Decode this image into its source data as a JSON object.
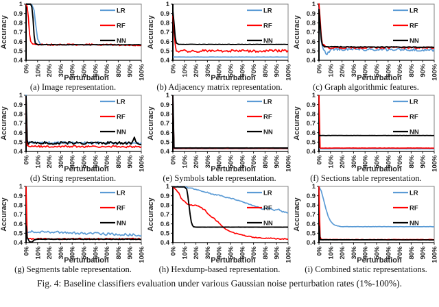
{
  "figure_caption": "Fig. 4: Baseline classifiers evaluation under various Gaussian noise perturbation rates (1%-100%).",
  "series_colors": {
    "LR": "#5B9BD5",
    "RF": "#FF0000",
    "NN": "#000000"
  },
  "legend_labels": [
    "LR",
    "RF",
    "NN"
  ],
  "axes": {
    "axis_color": "#1a1a1a",
    "box_color": "#808080",
    "yticks": [
      {
        "v": 0.4,
        "label": "0.4"
      },
      {
        "v": 0.5,
        "label": "0.5"
      },
      {
        "v": 0.6,
        "label": "0.6"
      },
      {
        "v": 0.7,
        "label": "0.7"
      },
      {
        "v": 0.8,
        "label": "0.8"
      },
      {
        "v": 0.9,
        "label": "0.9"
      },
      {
        "v": 1,
        "label": "1"
      }
    ],
    "xticks": [
      {
        "v": 0,
        "label": "0%"
      },
      {
        "v": 10,
        "label": "10%"
      },
      {
        "v": 20,
        "label": "20%"
      },
      {
        "v": 30,
        "label": "30%"
      },
      {
        "v": 40,
        "label": "40%"
      },
      {
        "v": 50,
        "label": "50%"
      },
      {
        "v": 60,
        "label": "60%"
      },
      {
        "v": 70,
        "label": "70%"
      },
      {
        "v": 80,
        "label": "80%"
      },
      {
        "v": 90,
        "label": "90%"
      },
      {
        "v": 100,
        "label": "100%"
      }
    ]
  },
  "chart_data": [
    {
      "type": "line",
      "caption": "(a) Image representation.",
      "xlabel": "Perturbation",
      "ylabel": "Accuracy",
      "xlim": [
        0,
        100
      ],
      "ylim": [
        0.4,
        1
      ],
      "legend_position": "top-right",
      "grid": false,
      "series": [
        {
          "name": "LR",
          "noise": 0.003,
          "points": [
            [
              0,
              1
            ],
            [
              4,
              1
            ],
            [
              5,
              0.99
            ],
            [
              7,
              0.93
            ],
            [
              8,
              0.82
            ],
            [
              10,
              0.63
            ],
            [
              12,
              0.58
            ],
            [
              14,
              0.567
            ],
            [
              100,
              0.565
            ]
          ]
        },
        {
          "name": "RF",
          "noise": 0.007,
          "points": [
            [
              0,
              1
            ],
            [
              1,
              0.97
            ],
            [
              2,
              0.85
            ],
            [
              3,
              0.68
            ],
            [
              4,
              0.6
            ],
            [
              6,
              0.575
            ],
            [
              8,
              0.568
            ],
            [
              55,
              0.568
            ],
            [
              100,
              0.562
            ]
          ]
        },
        {
          "name": "NN",
          "noise": 0.0015,
          "points": [
            [
              0,
              1
            ],
            [
              4,
              1
            ],
            [
              5,
              0.97
            ],
            [
              6,
              0.85
            ],
            [
              7,
              0.66
            ],
            [
              8,
              0.585
            ],
            [
              10,
              0.567
            ],
            [
              100,
              0.566
            ]
          ]
        }
      ]
    },
    {
      "type": "line",
      "caption": "(b) Adjacency matrix representation.",
      "xlabel": "Perturbation",
      "ylabel": "Accuracy",
      "xlim": [
        0,
        100
      ],
      "ylim": [
        0.4,
        1
      ],
      "legend_position": "top-right",
      "grid": false,
      "series": [
        {
          "name": "LR",
          "noise": 0.001,
          "points": [
            [
              0,
              0.435
            ],
            [
              100,
              0.435
            ]
          ]
        },
        {
          "name": "RF",
          "noise": 0.014,
          "points": [
            [
              0,
              0.87
            ],
            [
              1,
              0.72
            ],
            [
              2,
              0.58
            ],
            [
              3,
              0.51
            ],
            [
              5,
              0.5
            ],
            [
              100,
              0.5
            ]
          ]
        },
        {
          "name": "NN",
          "noise": 0.0015,
          "points": [
            [
              0,
              0.93
            ],
            [
              1,
              0.8
            ],
            [
              2,
              0.65
            ],
            [
              3,
              0.585
            ],
            [
              5,
              0.57
            ],
            [
              100,
              0.57
            ]
          ]
        }
      ]
    },
    {
      "type": "line",
      "caption": "(c) Graph algorithmic features.",
      "xlabel": "Perturbation",
      "ylabel": "Accuracy",
      "xlim": [
        0,
        100
      ],
      "ylim": [
        0.4,
        1
      ],
      "legend_position": "top-right",
      "grid": false,
      "series": [
        {
          "name": "LR",
          "noise": 0.014,
          "points": [
            [
              0,
              0.97
            ],
            [
              1,
              0.8
            ],
            [
              2,
              0.62
            ],
            [
              3,
              0.54
            ],
            [
              5,
              0.5
            ],
            [
              7,
              0.46
            ],
            [
              9,
              0.5
            ],
            [
              12,
              0.52
            ],
            [
              100,
              0.51
            ]
          ]
        },
        {
          "name": "RF",
          "noise": 0.011,
          "points": [
            [
              0,
              1
            ],
            [
              1,
              0.85
            ],
            [
              2,
              0.66
            ],
            [
              3,
              0.58
            ],
            [
              5,
              0.55
            ],
            [
              8,
              0.535
            ],
            [
              100,
              0.535
            ]
          ]
        },
        {
          "name": "NN",
          "noise": 0.004,
          "points": [
            [
              0,
              0.95
            ],
            [
              1,
              0.78
            ],
            [
              2,
              0.62
            ],
            [
              3,
              0.565
            ],
            [
              5,
              0.545
            ],
            [
              100,
              0.54
            ]
          ]
        }
      ]
    },
    {
      "type": "line",
      "caption": "(d) String representation.",
      "xlabel": "Perturbation",
      "ylabel": "Accuracy",
      "xlim": [
        0,
        100
      ],
      "ylim": [
        0.4,
        1
      ],
      "legend_position": "top-right",
      "grid": false,
      "series": [
        {
          "name": "LR",
          "noise": 0.011,
          "points": [
            [
              0,
              1
            ],
            [
              1,
              0.52
            ],
            [
              2,
              0.495
            ],
            [
              100,
              0.49
            ]
          ]
        },
        {
          "name": "RF",
          "noise": 0.01,
          "points": [
            [
              0,
              1
            ],
            [
              1,
              0.47
            ],
            [
              2,
              0.455
            ],
            [
              100,
              0.45
            ]
          ]
        },
        {
          "name": "NN",
          "noise": 0.014,
          "points": [
            [
              0,
              1
            ],
            [
              1,
              0.5
            ],
            [
              2,
              0.49
            ],
            [
              92,
              0.49
            ],
            [
              94,
              0.545
            ],
            [
              96,
              0.49
            ],
            [
              100,
              0.48
            ]
          ]
        }
      ]
    },
    {
      "type": "line",
      "caption": "(e) Symbols table representation.",
      "xlabel": "Perturbation",
      "ylabel": "Accuracy",
      "xlim": [
        0,
        100
      ],
      "ylim": [
        0.4,
        1
      ],
      "legend_position": "top-right",
      "grid": false,
      "series": [
        {
          "name": "LR",
          "noise": 0.0008,
          "points": [
            [
              0,
              1
            ],
            [
              1,
              0.43
            ],
            [
              100,
              0.43
            ]
          ]
        },
        {
          "name": "RF",
          "noise": 0.0008,
          "points": [
            [
              0,
              1
            ],
            [
              1,
              0.432
            ],
            [
              100,
              0.432
            ]
          ]
        },
        {
          "name": "NN",
          "noise": 0.0008,
          "points": [
            [
              0,
              1
            ],
            [
              1,
              0.437
            ],
            [
              100,
              0.437
            ]
          ]
        }
      ]
    },
    {
      "type": "line",
      "caption": "(f) Sections table representation.",
      "xlabel": "Perturbation",
      "ylabel": "Accuracy",
      "xlim": [
        0,
        100
      ],
      "ylim": [
        0.4,
        1
      ],
      "legend_position": "top-right",
      "grid": false,
      "series": [
        {
          "name": "LR",
          "noise": 0.0012,
          "points": [
            [
              0,
              0.428
            ],
            [
              100,
              0.428
            ]
          ]
        },
        {
          "name": "RF",
          "noise": 0.0012,
          "points": [
            [
              0,
              1
            ],
            [
              1,
              0.436
            ],
            [
              100,
              0.436
            ]
          ]
        },
        {
          "name": "NN",
          "noise": 0.0008,
          "points": [
            [
              0,
              0.57
            ],
            [
              100,
              0.57
            ]
          ]
        }
      ]
    },
    {
      "type": "line",
      "caption": "(g) Segments table representation.",
      "xlabel": "Perturbation",
      "ylabel": "Accuracy",
      "xlim": [
        0,
        100
      ],
      "ylim": [
        0.4,
        1
      ],
      "legend_position": "top-right",
      "grid": false,
      "series": [
        {
          "name": "LR",
          "noise": 0.013,
          "points": [
            [
              0,
              0.52
            ],
            [
              100,
              0.48
            ]
          ]
        },
        {
          "name": "RF",
          "noise": 0.007,
          "points": [
            [
              0,
              1
            ],
            [
              1,
              0.46
            ],
            [
              2,
              0.44
            ],
            [
              100,
              0.44
            ]
          ]
        },
        {
          "name": "NN",
          "noise": 0.003,
          "points": [
            [
              0,
              0.58
            ],
            [
              1,
              0.45
            ],
            [
              3,
              0.41
            ],
            [
              5,
              0.405
            ],
            [
              7,
              0.43
            ],
            [
              9,
              0.437
            ],
            [
              100,
              0.436
            ]
          ]
        }
      ]
    },
    {
      "type": "line",
      "caption": "(h) Hexdump-based representation.",
      "xlabel": "Perturbation",
      "ylabel": "Accuracy",
      "xlim": [
        0,
        100
      ],
      "ylim": [
        0.4,
        1
      ],
      "legend_position": "top-right",
      "grid": false,
      "series": [
        {
          "name": "LR",
          "noise": 0.005,
          "points": [
            [
              0,
              1
            ],
            [
              8,
              0.995
            ],
            [
              15,
              0.985
            ],
            [
              20,
              0.97
            ],
            [
              25,
              0.95
            ],
            [
              30,
              0.935
            ],
            [
              35,
              0.915
            ],
            [
              40,
              0.905
            ],
            [
              45,
              0.885
            ],
            [
              50,
              0.875
            ],
            [
              55,
              0.855
            ],
            [
              60,
              0.84
            ],
            [
              65,
              0.815
            ],
            [
              70,
              0.79
            ],
            [
              75,
              0.775
            ],
            [
              78,
              0.755
            ],
            [
              82,
              0.77
            ],
            [
              85,
              0.76
            ],
            [
              88,
              0.745
            ],
            [
              92,
              0.755
            ],
            [
              95,
              0.73
            ],
            [
              100,
              0.72
            ]
          ]
        },
        {
          "name": "RF",
          "noise": 0.005,
          "points": [
            [
              0,
              0.99
            ],
            [
              3,
              0.96
            ],
            [
              5,
              0.93
            ],
            [
              7,
              0.88
            ],
            [
              9,
              0.85
            ],
            [
              11,
              0.83
            ],
            [
              13,
              0.81
            ],
            [
              16,
              0.8
            ],
            [
              20,
              0.8
            ],
            [
              23,
              0.785
            ],
            [
              26,
              0.76
            ],
            [
              28,
              0.745
            ],
            [
              30,
              0.71
            ],
            [
              33,
              0.68
            ],
            [
              36,
              0.655
            ],
            [
              40,
              0.61
            ],
            [
              42,
              0.585
            ],
            [
              44,
              0.56
            ],
            [
              46,
              0.545
            ],
            [
              50,
              0.52
            ],
            [
              54,
              0.5
            ],
            [
              58,
              0.49
            ],
            [
              62,
              0.475
            ],
            [
              66,
              0.465
            ],
            [
              70,
              0.455
            ],
            [
              75,
              0.45
            ],
            [
              80,
              0.445
            ],
            [
              85,
              0.45
            ],
            [
              90,
              0.44
            ],
            [
              95,
              0.44
            ],
            [
              100,
              0.44
            ]
          ]
        },
        {
          "name": "NN",
          "noise": 0.0008,
          "points": [
            [
              0,
              0.995
            ],
            [
              10,
              0.995
            ],
            [
              12,
              0.97
            ],
            [
              13,
              0.9
            ],
            [
              14,
              0.8
            ],
            [
              15,
              0.7
            ],
            [
              16,
              0.62
            ],
            [
              17,
              0.585
            ],
            [
              18,
              0.57
            ],
            [
              20,
              0.565
            ],
            [
              100,
              0.565
            ]
          ]
        }
      ]
    },
    {
      "type": "line",
      "caption": "(i) Combined static representations.",
      "xlabel": "Perturbation",
      "ylabel": "Accuracy",
      "xlim": [
        0,
        100
      ],
      "ylim": [
        0.4,
        1
      ],
      "legend_position": "top-right",
      "grid": false,
      "series": [
        {
          "name": "LR",
          "noise": 0.0015,
          "points": [
            [
              0,
              1
            ],
            [
              2,
              0.95
            ],
            [
              4,
              0.86
            ],
            [
              6,
              0.76
            ],
            [
              8,
              0.68
            ],
            [
              10,
              0.63
            ],
            [
              12,
              0.6
            ],
            [
              14,
              0.585
            ],
            [
              16,
              0.578
            ],
            [
              18,
              0.573
            ],
            [
              20,
              0.57
            ],
            [
              100,
              0.57
            ]
          ]
        },
        {
          "name": "RF",
          "noise": 0.0015,
          "points": [
            [
              0,
              1
            ],
            [
              1,
              0.46
            ],
            [
              2,
              0.432
            ],
            [
              100,
              0.432
            ]
          ]
        },
        {
          "name": "NN",
          "noise": 0.0008,
          "points": [
            [
              0,
              0.58
            ],
            [
              1,
              0.43
            ],
            [
              100,
              0.428
            ]
          ]
        }
      ]
    }
  ]
}
